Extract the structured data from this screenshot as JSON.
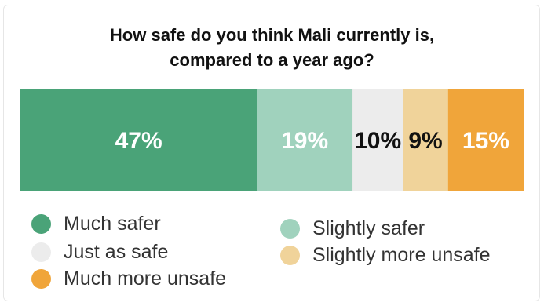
{
  "chart_data": {
    "type": "bar",
    "orientation": "horizontal-stacked-100",
    "title": "How safe do you think Mali currently is, compared to a year ago?",
    "title_lines": [
      "How safe do you think Mali currently is,",
      "compared to a year ago?"
    ],
    "series": [
      {
        "name": "Much safer",
        "value": 47,
        "label": "47%",
        "color": "#4aa378",
        "label_color": "#ffffff"
      },
      {
        "name": "Slightly safer",
        "value": 19,
        "label": "19%",
        "color": "#a0d2bd",
        "label_color": "#ffffff"
      },
      {
        "name": "Just as safe",
        "value": 10,
        "label": "10%",
        "color": "#ececec",
        "label_color": "#111111"
      },
      {
        "name": "Slightly more unsafe",
        "value": 9,
        "label": "9%",
        "color": "#f0d39a",
        "label_color": "#111111"
      },
      {
        "name": "Much more unsafe",
        "value": 15,
        "label": "15%",
        "color": "#f0a53a",
        "label_color": "#ffffff"
      }
    ],
    "legend": [
      {
        "label": "Much safer",
        "color": "#4aa378"
      },
      {
        "label": "Slightly safer",
        "color": "#a0d2bd"
      },
      {
        "label": "Just as safe",
        "color": "#ececec"
      },
      {
        "label": "Slightly more unsafe",
        "color": "#f0d39a"
      },
      {
        "label": "Much more unsafe",
        "color": "#f0a53a"
      }
    ],
    "legend_placement": "bottom",
    "grid": false
  }
}
